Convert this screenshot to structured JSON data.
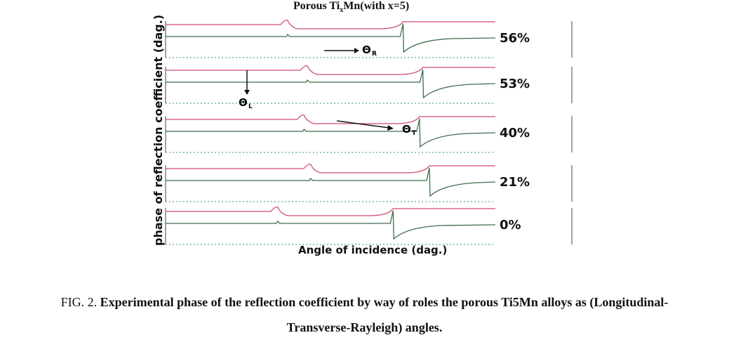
{
  "chart_data": {
    "type": "line",
    "title": "Porous TixMn(with x=5)",
    "title_parts": {
      "pre": "Porous Ti",
      "sub": "x",
      "post": "Mn(with x=5)"
    },
    "xlabel": "Angle of incidence (dag.)",
    "ylabel": "phase of reflection coefficient (dag.)",
    "panels": [
      {
        "name": "56%",
        "theta_L_peak": 0.37,
        "critical": 0.72
      },
      {
        "name": "53%",
        "theta_L_peak": 0.43,
        "critical": 0.78
      },
      {
        "name": "40%",
        "theta_L_peak": 0.42,
        "critical": 0.77
      },
      {
        "name": "21%",
        "theta_L_peak": 0.44,
        "critical": 0.8
      },
      {
        "name": "0%",
        "theta_L_peak": 0.34,
        "critical": 0.69
      }
    ],
    "annotations": [
      {
        "label": "Θ",
        "sub": "R",
        "panel": 0
      },
      {
        "label": "Θ",
        "sub": "L",
        "panel": 1
      },
      {
        "label": "Θ",
        "sub": "T",
        "panel": 2
      }
    ]
  },
  "caption": {
    "prefix": "FIG. 2.",
    "line1": "Experimental phase of the reflection coefficient by way of roles the porous Ti5Mn alloys as (Longitudinal-",
    "line2": "Transverse-Rayleigh) angles."
  },
  "colors": {
    "top_line": "#d24a6a",
    "mid_line": "#3c6e4a",
    "frame": "#444444",
    "ticks": "#3a8a8a"
  }
}
